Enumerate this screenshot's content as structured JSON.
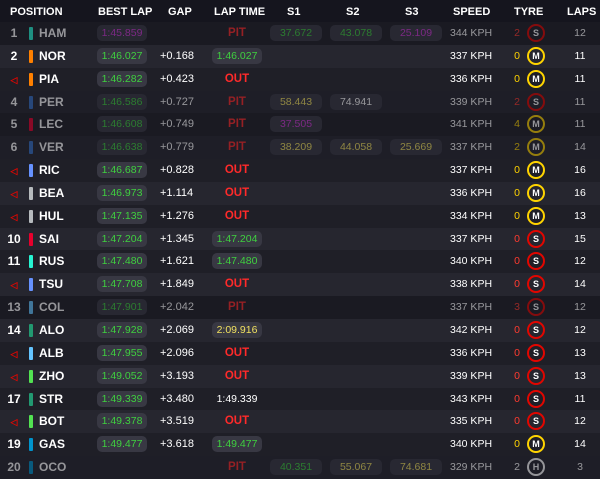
{
  "header": {
    "position": "POSITION",
    "best_lap": "BEST LAP",
    "gap": "GAP",
    "lap_time": "LAP TIME",
    "s1": "S1",
    "s2": "S2",
    "s3": "S3",
    "speed": "SPEED",
    "tyre": "TYRE",
    "laps": "LAPS"
  },
  "colors": {
    "fastest": "#d13bd9",
    "personal_best": "#3fd03f",
    "slower": "#f0e060",
    "status": "#ff2a2a",
    "soft": "#e10600",
    "medium": "#ffd400",
    "hard": "#ffffff"
  },
  "rows": [
    {
      "pos": "1",
      "driver": "HAM",
      "team_color": "#27f4d2",
      "dim": true,
      "best": "1:45.859",
      "best_color": "purple",
      "gap": "",
      "lap": "PIT",
      "lap_type": "status",
      "s1": "37.672",
      "s1c": "green",
      "s2": "43.078",
      "s2c": "green",
      "s3": "25.109",
      "s3c": "purple",
      "speed": "344 KPH",
      "stints": "2",
      "stint_color": "red",
      "tyre": "S",
      "laps": "12"
    },
    {
      "pos": "2",
      "driver": "NOR",
      "team_color": "#ff8000",
      "dim": false,
      "best": "1:46.027",
      "best_color": "green",
      "gap": "+0.168",
      "lap": "1:46.027",
      "lap_type": "green",
      "s1": "",
      "s1c": "",
      "s2": "",
      "s2c": "",
      "s3": "",
      "s3c": "",
      "speed": "337 KPH",
      "stints": "0",
      "stint_color": "yellow",
      "tyre": "M",
      "laps": "11"
    },
    {
      "pos": "",
      "driver": "PIA",
      "team_color": "#ff8000",
      "dim": false,
      "best": "1:46.282",
      "best_color": "green",
      "gap": "+0.423",
      "lap": "OUT",
      "lap_type": "status",
      "s1": "",
      "s1c": "",
      "s2": "",
      "s2c": "",
      "s3": "",
      "s3c": "",
      "speed": "336 KPH",
      "stints": "0",
      "stint_color": "yellow",
      "tyre": "M",
      "laps": "11"
    },
    {
      "pos": "4",
      "driver": "PER",
      "team_color": "#3671c6",
      "dim": true,
      "best": "1:46.586",
      "best_color": "green",
      "gap": "+0.727",
      "lap": "PIT",
      "lap_type": "status",
      "s1": "58.443",
      "s1c": "yellow",
      "s2": "74.941",
      "s2c": "white",
      "s3": "",
      "s3c": "",
      "speed": "339 KPH",
      "stints": "2",
      "stint_color": "red",
      "tyre": "S",
      "laps": "11"
    },
    {
      "pos": "5",
      "driver": "LEC",
      "team_color": "#e8002d",
      "dim": true,
      "best": "1:46.608",
      "best_color": "green",
      "gap": "+0.749",
      "lap": "PIT",
      "lap_type": "status",
      "s1": "37.505",
      "s1c": "purple",
      "s2": "",
      "s2c": "",
      "s3": "",
      "s3c": "",
      "speed": "341 KPH",
      "stints": "4",
      "stint_color": "yellow",
      "tyre": "M",
      "laps": "11"
    },
    {
      "pos": "6",
      "driver": "VER",
      "team_color": "#3671c6",
      "dim": true,
      "best": "1:46.638",
      "best_color": "green",
      "gap": "+0.779",
      "lap": "PIT",
      "lap_type": "status",
      "s1": "38.209",
      "s1c": "yellow",
      "s2": "44.058",
      "s2c": "yellow",
      "s3": "25.669",
      "s3c": "yellow",
      "speed": "337 KPH",
      "stints": "2",
      "stint_color": "yellow",
      "tyre": "M",
      "laps": "14"
    },
    {
      "pos": "",
      "driver": "RIC",
      "team_color": "#6692ff",
      "dim": false,
      "best": "1:46.687",
      "best_color": "green",
      "gap": "+0.828",
      "lap": "OUT",
      "lap_type": "status",
      "s1": "",
      "s1c": "",
      "s2": "",
      "s2c": "",
      "s3": "",
      "s3c": "",
      "speed": "337 KPH",
      "stints": "0",
      "stint_color": "yellow",
      "tyre": "M",
      "laps": "16"
    },
    {
      "pos": "",
      "driver": "BEA",
      "team_color": "#b6babd",
      "dim": false,
      "best": "1:46.973",
      "best_color": "green",
      "gap": "+1.114",
      "lap": "OUT",
      "lap_type": "status",
      "s1": "",
      "s1c": "",
      "s2": "",
      "s2c": "",
      "s3": "",
      "s3c": "",
      "speed": "336 KPH",
      "stints": "0",
      "stint_color": "yellow",
      "tyre": "M",
      "laps": "16"
    },
    {
      "pos": "",
      "driver": "HUL",
      "team_color": "#b6babd",
      "dim": false,
      "best": "1:47.135",
      "best_color": "green",
      "gap": "+1.276",
      "lap": "OUT",
      "lap_type": "status",
      "s1": "",
      "s1c": "",
      "s2": "",
      "s2c": "",
      "s3": "",
      "s3c": "",
      "speed": "334 KPH",
      "stints": "0",
      "stint_color": "yellow",
      "tyre": "M",
      "laps": "13"
    },
    {
      "pos": "10",
      "driver": "SAI",
      "team_color": "#e8002d",
      "dim": false,
      "best": "1:47.204",
      "best_color": "green",
      "gap": "+1.345",
      "lap": "1:47.204",
      "lap_type": "green",
      "s1": "",
      "s1c": "",
      "s2": "",
      "s2c": "",
      "s3": "",
      "s3c": "",
      "speed": "337 KPH",
      "stints": "0",
      "stint_color": "red",
      "tyre": "S",
      "laps": "15"
    },
    {
      "pos": "11",
      "driver": "RUS",
      "team_color": "#27f4d2",
      "dim": false,
      "best": "1:47.480",
      "best_color": "green",
      "gap": "+1.621",
      "lap": "1:47.480",
      "lap_type": "green",
      "s1": "",
      "s1c": "",
      "s2": "",
      "s2c": "",
      "s3": "",
      "s3c": "",
      "speed": "340 KPH",
      "stints": "0",
      "stint_color": "red",
      "tyre": "S",
      "laps": "12"
    },
    {
      "pos": "",
      "driver": "TSU",
      "team_color": "#6692ff",
      "dim": false,
      "best": "1:47.708",
      "best_color": "green",
      "gap": "+1.849",
      "lap": "OUT",
      "lap_type": "status",
      "s1": "",
      "s1c": "",
      "s2": "",
      "s2c": "",
      "s3": "",
      "s3c": "",
      "speed": "338 KPH",
      "stints": "0",
      "stint_color": "red",
      "tyre": "S",
      "laps": "14"
    },
    {
      "pos": "13",
      "driver": "COL",
      "team_color": "#64c4ff",
      "dim": true,
      "best": "1:47.901",
      "best_color": "green",
      "gap": "+2.042",
      "lap": "PIT",
      "lap_type": "status",
      "s1": "",
      "s1c": "",
      "s2": "",
      "s2c": "",
      "s3": "",
      "s3c": "",
      "speed": "337 KPH",
      "stints": "3",
      "stint_color": "red",
      "tyre": "S",
      "laps": "12"
    },
    {
      "pos": "14",
      "driver": "ALO",
      "team_color": "#229971",
      "dim": false,
      "best": "1:47.928",
      "best_color": "green",
      "gap": "+2.069",
      "lap": "2:09.916",
      "lap_type": "yellow",
      "s1": "",
      "s1c": "",
      "s2": "",
      "s2c": "",
      "s3": "",
      "s3c": "",
      "speed": "342 KPH",
      "stints": "0",
      "stint_color": "red",
      "tyre": "S",
      "laps": "12"
    },
    {
      "pos": "",
      "driver": "ALB",
      "team_color": "#64c4ff",
      "dim": false,
      "best": "1:47.955",
      "best_color": "green",
      "gap": "+2.096",
      "lap": "OUT",
      "lap_type": "status",
      "s1": "",
      "s1c": "",
      "s2": "",
      "s2c": "",
      "s3": "",
      "s3c": "",
      "speed": "336 KPH",
      "stints": "0",
      "stint_color": "red",
      "tyre": "S",
      "laps": "13"
    },
    {
      "pos": "",
      "driver": "ZHO",
      "team_color": "#52e252",
      "dim": false,
      "best": "1:49.052",
      "best_color": "green",
      "gap": "+3.193",
      "lap": "OUT",
      "lap_type": "status",
      "s1": "",
      "s1c": "",
      "s2": "",
      "s2c": "",
      "s3": "",
      "s3c": "",
      "speed": "339 KPH",
      "stints": "0",
      "stint_color": "red",
      "tyre": "S",
      "laps": "13"
    },
    {
      "pos": "17",
      "driver": "STR",
      "team_color": "#229971",
      "dim": false,
      "best": "1:49.339",
      "best_color": "green",
      "gap": "+3.480",
      "lap": "1:49.339",
      "lap_type": "plain",
      "s1": "",
      "s1c": "",
      "s2": "",
      "s2c": "",
      "s3": "",
      "s3c": "",
      "speed": "343 KPH",
      "stints": "0",
      "stint_color": "red",
      "tyre": "S",
      "laps": "11"
    },
    {
      "pos": "",
      "driver": "BOT",
      "team_color": "#52e252",
      "dim": false,
      "best": "1:49.378",
      "best_color": "green",
      "gap": "+3.519",
      "lap": "OUT",
      "lap_type": "status",
      "s1": "",
      "s1c": "",
      "s2": "",
      "s2c": "",
      "s3": "",
      "s3c": "",
      "speed": "335 KPH",
      "stints": "0",
      "stint_color": "red",
      "tyre": "S",
      "laps": "12"
    },
    {
      "pos": "19",
      "driver": "GAS",
      "team_color": "#0093cc",
      "dim": false,
      "best": "1:49.477",
      "best_color": "green",
      "gap": "+3.618",
      "lap": "1:49.477",
      "lap_type": "green",
      "s1": "",
      "s1c": "",
      "s2": "",
      "s2c": "",
      "s3": "",
      "s3c": "",
      "speed": "340 KPH",
      "stints": "0",
      "stint_color": "yellow",
      "tyre": "M",
      "laps": "14"
    },
    {
      "pos": "20",
      "driver": "OCO",
      "team_color": "#0093cc",
      "dim": true,
      "best": "",
      "best_color": "green",
      "gap": "",
      "lap": "PIT",
      "lap_type": "status",
      "s1": "40.351",
      "s1c": "green",
      "s2": "55.067",
      "s2c": "yellow",
      "s3": "74.681",
      "s3c": "yellow",
      "speed": "329 KPH",
      "stints": "2",
      "stint_color": "white",
      "tyre": "H",
      "laps": "3"
    }
  ]
}
